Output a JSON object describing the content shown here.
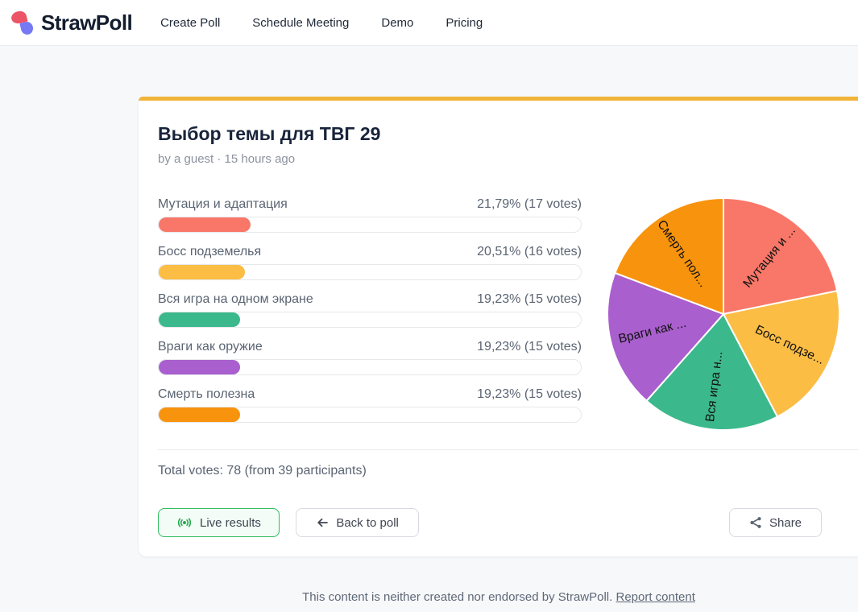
{
  "header": {
    "brand": "StrawPoll",
    "nav": [
      {
        "label": "Create Poll"
      },
      {
        "label": "Schedule Meeting"
      },
      {
        "label": "Demo"
      },
      {
        "label": "Pricing"
      }
    ]
  },
  "poll": {
    "title": "Выбор темы для ТВГ 29",
    "byline": "by a guest · 15 hours ago",
    "options": [
      {
        "label": "Мутация и адаптация",
        "result": "21,79% (17 votes)",
        "pct": 21.79,
        "color": "#F87768"
      },
      {
        "label": "Босс подземелья",
        "result": "20,51% (16 votes)",
        "pct": 20.51,
        "color": "#FBBD44"
      },
      {
        "label": "Вся игра на одном экране",
        "result": "19,23% (15 votes)",
        "pct": 19.23,
        "color": "#3CB98C"
      },
      {
        "label": "Враги как оружие",
        "result": "19,23% (15 votes)",
        "pct": 19.23,
        "color": "#A95FCE"
      },
      {
        "label": "Смерть полезна",
        "result": "19,23% (15 votes)",
        "pct": 19.23,
        "color": "#F8930D"
      }
    ],
    "total_votes_text": "Total votes: 78 (from 39 participants)",
    "buttons": {
      "live": "Live results",
      "back": "Back to poll",
      "share": "Share"
    }
  },
  "chart_data": {
    "type": "pie",
    "title": "",
    "total": 78,
    "start_angle_deg": -90,
    "direction": "clockwise",
    "stroke": "#ffffff",
    "label_color": "#111111",
    "slices": [
      {
        "label": "Мутация и ...",
        "value": 17,
        "pct": 21.79,
        "color": "#F87768"
      },
      {
        "label": "Босс подзе...",
        "value": 16,
        "pct": 20.51,
        "color": "#FBBD44"
      },
      {
        "label": "Вся игра н...",
        "value": 15,
        "pct": 19.23,
        "color": "#3CB98C"
      },
      {
        "label": "Враги как ...",
        "value": 15,
        "pct": 19.23,
        "color": "#A95FCE"
      },
      {
        "label": "Смерть пол...",
        "value": 15,
        "pct": 19.23,
        "color": "#F8930D"
      }
    ]
  },
  "footer": {
    "disclaimer": "This content is neither created nor endorsed by StrawPoll. ",
    "report_link": "Report content"
  },
  "icons": {
    "logo": "strawpoll-two-petals",
    "live": "broadcast-live-icon",
    "back": "arrow-left-icon",
    "share": "share-nodes-icon"
  },
  "colors": {
    "page_bg": "#f7f8fa",
    "card_accent_top": "#F2B339",
    "live_green": "#2FBD5F",
    "text_primary": "#18243a",
    "text_muted": "#5a6472"
  }
}
